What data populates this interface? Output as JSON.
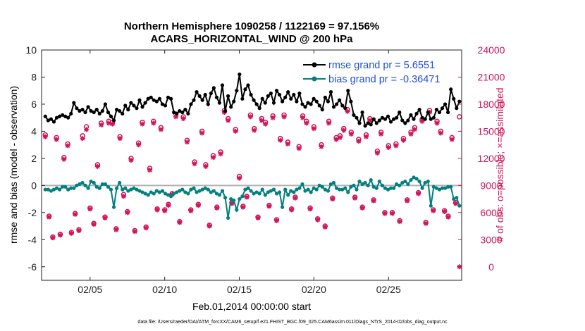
{
  "chart_data": {
    "type": "line",
    "title_line1": "Northern Hemisphere 1090258 / 1122169 = 97.156%",
    "title_line2": "ACARS_HORIZONTAL_WIND @ 200 hPa",
    "xlabel": "Feb.01,2014 00:00:00 start",
    "ylabel_left": "rmse and bias (model - observation)",
    "ylabel_right": "# of obs: o=possible; ×=assimilated",
    "footnote": "data file: /Users/raeder/DAI/ATM_forcXX/CAM6_setup/f.e21.FHIST_BGC.f09_025.CAM6assim.011/Diags_NTrS_2014-02/obs_diag_output.nc",
    "xlim_days": [
      0.75,
      28.9
    ],
    "x_tick_days": [
      4,
      9,
      14,
      19,
      24
    ],
    "x_tick_labels": [
      "02/05",
      "02/10",
      "02/15",
      "02/20",
      "02/25"
    ],
    "ylim_left": [
      -7,
      10
    ],
    "left_ticks": [
      -6,
      -4,
      -2,
      0,
      2,
      4,
      6,
      8,
      10
    ],
    "left_tick_labels": [
      "-6",
      "-4",
      "-2",
      "0",
      "2",
      "4",
      "6",
      "8",
      "10"
    ],
    "ylim_right": [
      -1500,
      24000
    ],
    "right_ticks": [
      0,
      3000,
      6000,
      9000,
      12000,
      15000,
      18000,
      21000,
      24000
    ],
    "right_tick_labels": [
      "0",
      "3000",
      "6000",
      "9000",
      "12000",
      "15000",
      "18000",
      "21000",
      "24000"
    ],
    "legend": [
      {
        "name": "rmse grand pr = 5.6551",
        "color": "#000000"
      },
      {
        "name": "bias grand pr = -0.36471",
        "color": "#00807f"
      }
    ],
    "series": [
      {
        "name": "rmse",
        "axis": "left",
        "color": "#000000",
        "values": [
          5.1,
          4.8,
          4.9,
          4.7,
          5.0,
          5.1,
          5.2,
          5.1,
          5.0,
          5.3,
          6.1,
          5.7,
          5.5,
          5.6,
          5.4,
          5.8,
          5.5,
          5.4,
          5.6,
          5.3,
          5.5,
          6.0,
          5.4,
          5.1,
          4.8,
          5.6,
          5.5,
          5.3,
          5.9,
          5.6,
          6.1,
          5.9,
          5.7,
          6.3,
          5.8,
          6.1,
          6.4,
          6.5,
          6.3,
          6.2,
          6.4,
          6.0,
          5.9,
          6.5,
          6.4,
          5.4,
          5.3,
          5.5,
          5.4,
          5.6,
          5.3,
          6.0,
          6.3,
          6.9,
          6.6,
          6.3,
          6.7,
          6.0,
          6.8,
          7.2,
          6.5,
          6.1,
          7.4,
          5.5,
          6.6,
          5.8,
          6.2,
          7.0,
          8.2,
          6.4,
          7.1,
          7.4,
          6.7,
          6.3,
          6.0,
          5.7,
          6.4,
          6.1,
          6.6,
          6.8,
          6.1,
          7.0,
          6.7,
          6.2,
          6.5,
          6.9,
          6.4,
          6.7,
          6.2,
          6.8,
          6.0,
          5.8,
          6.1,
          6.0,
          6.4,
          6.2,
          5.9,
          5.6,
          6.5,
          6.2,
          6.9,
          5.8,
          6.0,
          6.3,
          5.9,
          5.7,
          7.0,
          6.2,
          5.2,
          5.0,
          4.6,
          5.4,
          4.4,
          4.6,
          4.5,
          4.9,
          4.6,
          4.8,
          5.0,
          4.9,
          5.1,
          4.7,
          4.9,
          5.0,
          5.4,
          4.8,
          4.6,
          4.8,
          5.2,
          4.9,
          5.3,
          5.6,
          5.0,
          4.9,
          5.4,
          4.9,
          5.0,
          5.6,
          5.4,
          5.7,
          6.0,
          5.4,
          7.1,
          6.4,
          5.7,
          6.2
        ]
      },
      {
        "name": "bias",
        "axis": "left",
        "color": "#00807f",
        "values": [
          -0.3,
          -0.3,
          -0.4,
          -0.3,
          -0.2,
          -0.3,
          -0.1,
          -0.1,
          -0.3,
          -0.2,
          -0.2,
          0.0,
          0.1,
          0.2,
          0.0,
          -0.2,
          0.3,
          0.2,
          -0.1,
          -0.2,
          0.1,
          0.1,
          -0.1,
          -0.3,
          -1.6,
          -0.2,
          0.2,
          -0.3,
          -0.2,
          -0.4,
          -0.3,
          -0.2,
          -0.3,
          -0.4,
          -0.5,
          -0.6,
          -0.7,
          -0.5,
          -0.6,
          -0.4,
          -0.5,
          -0.4,
          -0.6,
          -0.7,
          -0.8,
          -0.6,
          -0.5,
          -0.4,
          -0.3,
          -0.5,
          -0.6,
          -0.3,
          -0.2,
          -0.5,
          -0.4,
          -0.3,
          -0.2,
          -0.3,
          -0.5,
          -0.4,
          -0.6,
          -0.7,
          -0.4,
          -0.9,
          -2.4,
          -1.0,
          -1.1,
          -1.8,
          -1.0,
          -0.8,
          -0.3,
          -0.2,
          -0.4,
          -0.6,
          -0.5,
          -0.6,
          -0.3,
          -0.7,
          -0.5,
          -0.4,
          -0.3,
          -0.6,
          -0.5,
          -1.6,
          -0.3,
          -0.7,
          -0.4,
          -0.5,
          -0.3,
          -0.2,
          0.1,
          -0.4,
          -0.3,
          -0.5,
          -0.2,
          -0.3,
          0.0,
          -0.1,
          -0.3,
          -0.4,
          0.1,
          0.2,
          -0.2,
          -0.3,
          -0.3,
          -0.2,
          -0.5,
          -0.1,
          0.0,
          -0.3,
          0.3,
          0.1,
          0.2,
          0.0,
          0.4,
          -0.1,
          -0.2,
          0.3,
          0.0,
          -0.2,
          -0.3,
          -0.2,
          -0.2,
          0.1,
          0.0,
          0.2,
          0.3,
          0.1,
          0.4,
          0.6,
          0.5,
          0.3,
          -0.2,
          0.2,
          0.3,
          -1.5,
          -0.1,
          -0.2,
          -0.3,
          -0.2,
          -0.2,
          -0.1,
          -0.1,
          -1.0,
          -0.9,
          -1.5
        ]
      },
      {
        "name": "obs possible",
        "axis": "right",
        "color": "#d1155a",
        "marker": "o",
        "values": [
          14600,
          5600,
          3300,
          14300,
          3600,
          12100,
          13600,
          3800,
          5900,
          4100,
          14500,
          15500,
          6500,
          4800,
          11300,
          15900,
          5500,
          16100,
          16000,
          4200,
          14400,
          8000,
          6100,
          12000,
          4000,
          13700,
          16000,
          4400,
          10900,
          16100,
          6400,
          15400,
          6300,
          6900,
          8100,
          16900,
          5000,
          16600,
          14000,
          6300,
          11600,
          6900,
          15000,
          11300,
          4600,
          12300,
          6600,
          12700,
          17300,
          16400,
          7100,
          15200,
          10000,
          6700,
          7800,
          16800,
          15300,
          5500,
          16400,
          16000,
          6800,
          16700,
          5200,
          14200,
          16800,
          13800,
          6400,
          7700,
          13300,
          16700,
          16100,
          6500,
          15500,
          5300,
          13500,
          4500,
          16100,
          7600,
          14300,
          14500,
          15300,
          17400,
          14900,
          7700,
          14100,
          6600,
          14600,
          16400,
          7400,
          12800,
          14900,
          6000,
          13400,
          6000,
          13600,
          5100,
          14200,
          7400,
          14900,
          15400,
          8200,
          16300,
          4900,
          17300,
          6300,
          16100,
          15000,
          6200,
          5600,
          14300,
          7100,
          16600
        ]
      },
      {
        "name": "obs assimilated",
        "axis": "right",
        "color": "#d1155a",
        "marker": "x",
        "values": [
          14400,
          5500,
          3200,
          14100,
          3500,
          11900,
          13400,
          3700,
          5800,
          4000,
          14200,
          15200,
          6400,
          4700,
          11100,
          15700,
          5400,
          15900,
          15800,
          4100,
          14200,
          7800,
          6000,
          11800,
          3900,
          13500,
          15800,
          4300,
          10700,
          15900,
          6300,
          15200,
          6200,
          6800,
          8000,
          16600,
          4900,
          16400,
          13800,
          6200,
          11400,
          6800,
          14800,
          11100,
          4500,
          12100,
          6500,
          12500,
          17100,
          16200,
          7000,
          15000,
          9800,
          6600,
          7700,
          16600,
          15100,
          5400,
          16200,
          15800,
          6700,
          16500,
          5100,
          14000,
          16600,
          13600,
          6300,
          7600,
          13100,
          16500,
          15900,
          6400,
          15300,
          5200,
          13300,
          4400,
          15900,
          7500,
          14100,
          14300,
          15100,
          17200,
          14700,
          7600,
          13900,
          6500,
          14400,
          16200,
          7300,
          12600,
          14700,
          5900,
          13200,
          5900,
          13400,
          5000,
          14000,
          7300,
          14700,
          15200,
          8100,
          16100,
          4800,
          17100,
          6200,
          15900,
          14800,
          6100,
          5500,
          14100,
          7000,
          0
        ]
      }
    ]
  }
}
